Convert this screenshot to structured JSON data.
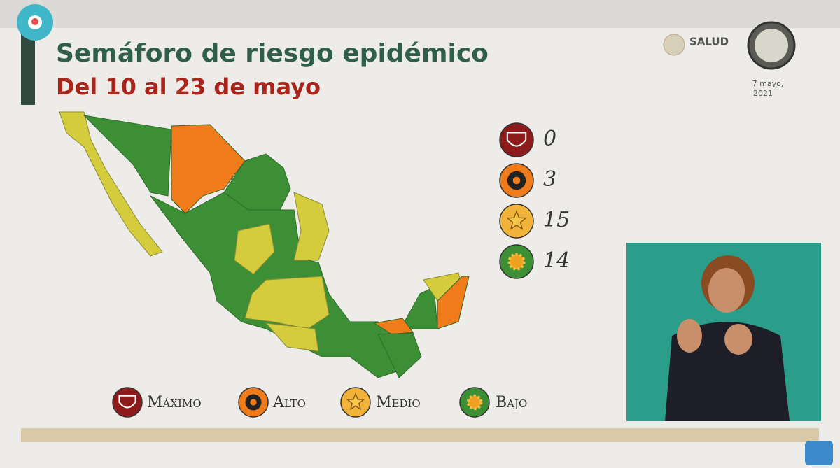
{
  "header": {
    "title": "Semáforo de riesgo epidémico",
    "subtitle": "Del 10 al 23 de mayo"
  },
  "logo": {
    "name": "SALUD"
  },
  "date": [
    "7 mayo,",
    "2021"
  ],
  "levels": [
    {
      "label": "Máximo",
      "count": "0",
      "color": "#8e1b1b"
    },
    {
      "label": "Alto",
      "count": "3",
      "color": "#f07b1a"
    },
    {
      "label": "Medio",
      "count": "15",
      "color": "#f2b33a"
    },
    {
      "label": "Bajo",
      "count": "14",
      "color": "#3d8f35"
    }
  ]
}
